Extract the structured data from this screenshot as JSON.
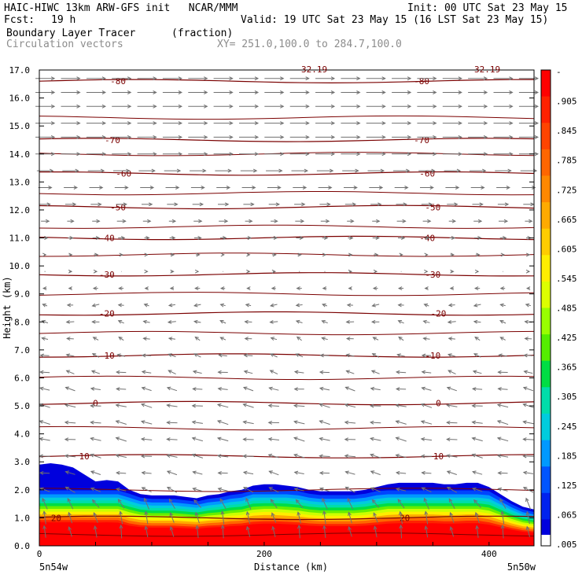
{
  "header": {
    "model_line": "HAIC-HIWC 13km ARW-GFS init   NCAR/MMM",
    "init_line": "Init: 00 UTC Sat 23 May 15",
    "fcst_label": "Fcst:",
    "fcst_value": "19 h",
    "valid_line": "Valid: 19 UTC Sat 23 May 15 (16 LST Sat 23 May 15)",
    "field_name": "Boundary Layer Tracer",
    "field_units": "(fraction)",
    "vector_name": "Circulation vectors",
    "xy_range": "XY= 251.0,100.0 to 284.7,100.0"
  },
  "chart_data": {
    "type": "heatmap",
    "ylabel": "Height (km)",
    "xlabel": "Distance (km)",
    "xlim": [
      0,
      440
    ],
    "ylim": [
      0.0,
      17.0
    ],
    "y_ticks": [
      "0.0",
      "1.0",
      "2.0",
      "3.0",
      "4.0",
      "5.0",
      "6.0",
      "7.0",
      "8.0",
      "9.0",
      "10.0",
      "11.0",
      "12.0",
      "13.0",
      "14.0",
      "15.0",
      "16.0",
      "17.0"
    ],
    "x_ticks": [
      "0",
      "200",
      "400"
    ],
    "x_tick_values": [
      0,
      200,
      400
    ],
    "left_endpoint_label": "5n54w",
    "right_endpoint_label": "5n50w",
    "top_clipped_labels": [
      "32.19",
      "32.19"
    ],
    "colorbar": {
      "labels": [
        "-",
        ".905",
        ".845",
        ".785",
        ".725",
        ".665",
        ".605",
        ".545",
        ".485",
        ".425",
        ".365",
        ".305",
        ".245",
        ".185",
        ".125",
        ".065",
        ".005"
      ],
      "colors": [
        "#ff0000",
        "#ff2200",
        "#ff4400",
        "#ff6600",
        "#ff8800",
        "#ffaa00",
        "#ffcc00",
        "#ffee00",
        "#ddff00",
        "#99ff00",
        "#55ee00",
        "#00dd44",
        "#00ddaa",
        "#00ccdd",
        "#0099ff",
        "#0055ff",
        "#0022ee",
        "#0000dd"
      ]
    },
    "tracer_top_km": [
      [
        0,
        2.9
      ],
      [
        10,
        2.95
      ],
      [
        20,
        2.9
      ],
      [
        30,
        2.8
      ],
      [
        40,
        2.55
      ],
      [
        50,
        2.3
      ],
      [
        60,
        2.35
      ],
      [
        70,
        2.3
      ],
      [
        80,
        2.0
      ],
      [
        90,
        1.85
      ],
      [
        100,
        1.8
      ],
      [
        110,
        1.8
      ],
      [
        120,
        1.8
      ],
      [
        130,
        1.75
      ],
      [
        140,
        1.7
      ],
      [
        150,
        1.8
      ],
      [
        160,
        1.85
      ],
      [
        170,
        1.95
      ],
      [
        180,
        2.0
      ],
      [
        190,
        2.15
      ],
      [
        200,
        2.2
      ],
      [
        210,
        2.2
      ],
      [
        220,
        2.15
      ],
      [
        230,
        2.1
      ],
      [
        240,
        2.0
      ],
      [
        250,
        1.95
      ],
      [
        260,
        1.95
      ],
      [
        270,
        1.95
      ],
      [
        280,
        1.95
      ],
      [
        290,
        2.0
      ],
      [
        300,
        2.1
      ],
      [
        310,
        2.2
      ],
      [
        320,
        2.25
      ],
      [
        330,
        2.25
      ],
      [
        340,
        2.25
      ],
      [
        350,
        2.25
      ],
      [
        360,
        2.2
      ],
      [
        370,
        2.2
      ],
      [
        380,
        2.25
      ],
      [
        390,
        2.25
      ],
      [
        400,
        2.1
      ],
      [
        410,
        1.85
      ],
      [
        420,
        1.6
      ],
      [
        430,
        1.4
      ],
      [
        440,
        1.3
      ]
    ],
    "isotherms": [
      {
        "label": "-80",
        "y_km": 16.6,
        "label_x_km": [
          70,
          340
        ]
      },
      {
        "label": "-70",
        "y_km": 14.5,
        "label_x_km": [
          65,
          340
        ]
      },
      {
        "label": "-60",
        "y_km": 13.3,
        "label_x_km": [
          75,
          345
        ]
      },
      {
        "label": "-50",
        "y_km": 12.1,
        "label_x_km": [
          70,
          350
        ]
      },
      {
        "label": "-40",
        "y_km": 11.0,
        "label_x_km": [
          60,
          345
        ]
      },
      {
        "label": "-30",
        "y_km": 9.7,
        "label_x_km": [
          60,
          350
        ]
      },
      {
        "label": "-20",
        "y_km": 8.3,
        "label_x_km": [
          60,
          355
        ]
      },
      {
        "label": "-10",
        "y_km": 6.8,
        "label_x_km": [
          60,
          350
        ]
      },
      {
        "label": "0",
        "y_km": 5.1,
        "label_x_km": [
          50,
          355
        ]
      },
      {
        "label": "10",
        "y_km": 3.2,
        "label_x_km": [
          40,
          355
        ]
      },
      {
        "label": "20",
        "y_km": 1.0,
        "label_x_km": [
          15,
          325
        ]
      }
    ],
    "extra_contours_km": [
      15.3,
      14.0,
      12.6,
      11.4,
      10.4,
      9.0,
      7.6,
      6.0,
      4.2,
      2.0,
      0.4
    ],
    "vectors": {
      "x_columns": 20,
      "rows": [
        {
          "y_km": 16.7,
          "u": 1.0,
          "w": 0.0
        },
        {
          "y_km": 16.2,
          "u": 1.0,
          "w": 0.0
        },
        {
          "y_km": 15.7,
          "u": 1.0,
          "w": 0.0
        },
        {
          "y_km": 15.1,
          "u": 1.0,
          "w": 0.0
        },
        {
          "y_km": 14.6,
          "u": 1.0,
          "w": 0.0
        },
        {
          "y_km": 14.0,
          "u": 1.0,
          "w": 0.0
        },
        {
          "y_km": 13.4,
          "u": 0.85,
          "w": 0.0
        },
        {
          "y_km": 12.8,
          "u": 0.7,
          "w": 0.0
        },
        {
          "y_km": 12.2,
          "u": 0.55,
          "w": 0.0
        },
        {
          "y_km": 11.6,
          "u": 0.4,
          "w": 0.0
        },
        {
          "y_km": 11.0,
          "u": 0.3,
          "w": 0.0
        },
        {
          "y_km": 10.4,
          "u": 0.15,
          "w": 0.0
        },
        {
          "y_km": 9.8,
          "u": 0.08,
          "w": 0.0
        },
        {
          "y_km": 9.2,
          "u": -0.2,
          "w": 0.0
        },
        {
          "y_km": 8.6,
          "u": -0.3,
          "w": 0.0
        },
        {
          "y_km": 8.0,
          "u": -0.35,
          "w": 0.05
        },
        {
          "y_km": 7.4,
          "u": -0.3,
          "w": 0.1
        },
        {
          "y_km": 6.8,
          "u": -0.4,
          "w": 0.1
        },
        {
          "y_km": 6.2,
          "u": -0.45,
          "w": 0.1
        },
        {
          "y_km": 5.6,
          "u": -0.5,
          "w": 0.1
        },
        {
          "y_km": 5.0,
          "u": -0.55,
          "w": 0.1
        },
        {
          "y_km": 4.4,
          "u": -0.55,
          "w": 0.1
        },
        {
          "y_km": 3.8,
          "u": -0.55,
          "w": 0.1
        },
        {
          "y_km": 3.2,
          "u": -0.55,
          "w": 0.1
        },
        {
          "y_km": 2.6,
          "u": -0.5,
          "w": 0.1
        },
        {
          "y_km": 2.0,
          "u": -0.5,
          "w": 0.2
        },
        {
          "y_km": 1.5,
          "u": -0.3,
          "w": 0.5
        },
        {
          "y_km": 1.0,
          "u": -0.15,
          "w": 0.6
        },
        {
          "y_km": 0.5,
          "u": -0.1,
          "w": 0.6
        }
      ]
    }
  }
}
